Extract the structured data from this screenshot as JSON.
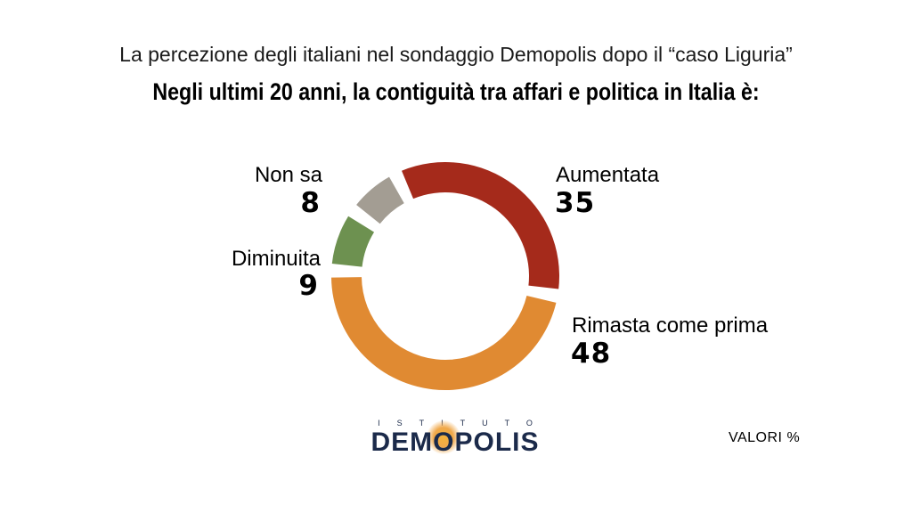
{
  "header": {
    "subtitle": "La percezione degli italiani nel sondaggio Demopolis dopo il “caso Liguria”",
    "title": "Negli ultimi 20 anni, la contiguità tra affari e politica in Italia è:"
  },
  "chart_data": {
    "type": "pie",
    "donut": true,
    "categories": [
      "Aumentata",
      "Rimasta come prima",
      "Diminuita",
      "Non sa"
    ],
    "values": [
      35,
      48,
      9,
      8
    ],
    "colors": [
      "#a52a1b",
      "#e08a32",
      "#6d9150",
      "#a39d93"
    ],
    "title": "Negli ultimi 20 anni, la contiguità tra affari e politica in Italia è:",
    "unit_note": "VALORI %"
  },
  "labels": {
    "aumentata": {
      "name": "Aumentata",
      "value": "35"
    },
    "rimasta": {
      "name": "Rimasta come prima",
      "value": "48"
    },
    "diminuita": {
      "name": "Diminuita",
      "value": "9"
    },
    "non_sa": {
      "name": "Non sa",
      "value": "8"
    }
  },
  "logo": {
    "top": "ISTITUTO",
    "main": "DEMOPOLIS"
  },
  "footnote": "VALORI %"
}
